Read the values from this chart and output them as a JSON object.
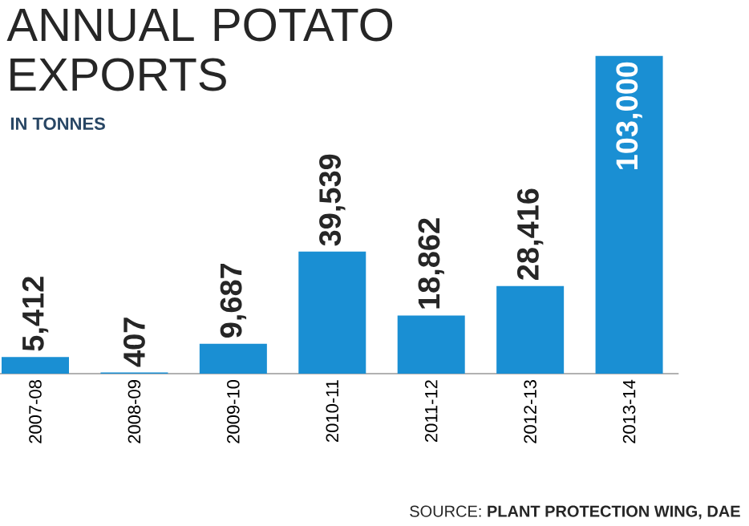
{
  "chart_data": {
    "type": "bar",
    "title": "ANNUAL POTATO EXPORTS",
    "subtitle": "IN TONNES",
    "categories": [
      "2007-08",
      "2008-09",
      "2009-10",
      "2010-11",
      "2011-12",
      "2012-13",
      "2013-14"
    ],
    "values": [
      5412,
      407,
      9687,
      39539,
      18862,
      28416,
      103000
    ],
    "color": "#1a8fd3",
    "value_labels": [
      "5,412",
      "407",
      "9,687",
      "39,539",
      "18,862",
      "28,416",
      "103,000"
    ],
    "annotations": [
      "SOURCE: **PLANT PROTECTION WING, DAE**"
    ]
  }
}
